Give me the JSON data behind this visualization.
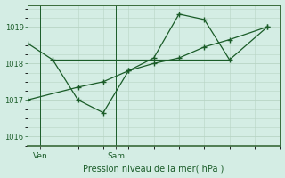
{
  "background_color": "#d4ede4",
  "plot_bg_color": "#d4ede4",
  "line_color": "#1a5c28",
  "grid_color": "#b8d4c4",
  "spine_color": "#3a6b3a",
  "title": "Pression niveau de la mer( hPa )",
  "xlabel_ven": "Ven",
  "xlabel_sam": "Sam",
  "ylim": [
    1015.75,
    1019.6
  ],
  "yticks": [
    1016,
    1017,
    1018,
    1019
  ],
  "xlim": [
    0,
    10
  ],
  "ven_x": 0.5,
  "sam_x": 3.5,
  "line1_x": [
    0.0,
    1.0,
    2.0,
    3.0,
    4.0,
    5.0,
    6.0,
    7.0,
    8.0,
    9.5
  ],
  "line1_y": [
    1018.55,
    1018.1,
    1017.0,
    1016.65,
    1017.8,
    1018.15,
    1019.35,
    1019.2,
    1018.1,
    1019.0
  ],
  "line2_x": [
    0.0,
    2.0,
    3.0,
    4.0,
    5.0,
    6.0,
    7.0,
    8.0,
    9.5
  ],
  "line2_y": [
    1017.0,
    1017.35,
    1017.5,
    1017.8,
    1018.0,
    1018.15,
    1018.45,
    1018.65,
    1019.0
  ],
  "hline_y": 1018.1,
  "hline_x_start": 1.0,
  "hline_x_end": 8.0
}
